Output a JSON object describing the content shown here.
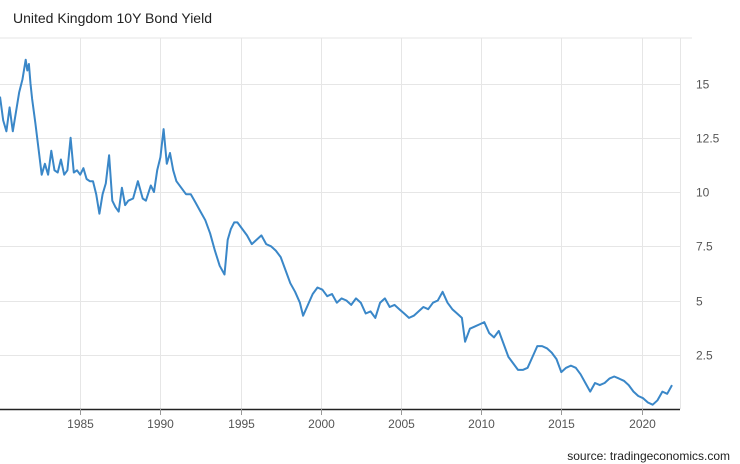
{
  "chart_data": {
    "type": "line",
    "title": "United Kingdom 10Y Bond Yield",
    "source": "source: tradingeconomics.com",
    "xlabel": "",
    "ylabel": "",
    "xlim": [
      1980,
      2022.4
    ],
    "ylim": [
      0,
      17.1
    ],
    "x_ticks": [
      1985,
      1990,
      1995,
      2000,
      2005,
      2010,
      2015,
      2020
    ],
    "y_ticks": [
      2.5,
      5,
      7.5,
      10,
      12.5,
      15
    ],
    "y_tick_labels": [
      "2.5",
      "5",
      "7.5",
      "10",
      "12.5",
      "15"
    ],
    "grid": true,
    "line_color": "#3a87c8",
    "series": [
      {
        "name": "United Kingdom 10Y Bond Yield",
        "x": [
          1980.0,
          1980.2,
          1980.4,
          1980.6,
          1980.8,
          1981.0,
          1981.2,
          1981.4,
          1981.6,
          1981.7,
          1981.8,
          1981.9,
          1982.0,
          1982.2,
          1982.4,
          1982.6,
          1982.8,
          1983.0,
          1983.2,
          1983.4,
          1983.6,
          1983.8,
          1984.0,
          1984.2,
          1984.4,
          1984.6,
          1984.8,
          1985.0,
          1985.2,
          1985.4,
          1985.6,
          1985.8,
          1986.0,
          1986.2,
          1986.4,
          1986.6,
          1986.8,
          1987.0,
          1987.2,
          1987.4,
          1987.6,
          1987.8,
          1988.0,
          1988.3,
          1988.6,
          1988.9,
          1989.1,
          1989.4,
          1989.6,
          1989.8,
          1990.0,
          1990.2,
          1990.4,
          1990.6,
          1990.8,
          1991.0,
          1991.3,
          1991.6,
          1991.9,
          1992.2,
          1992.5,
          1992.8,
          1993.1,
          1993.4,
          1993.7,
          1994.0,
          1994.2,
          1994.4,
          1994.6,
          1994.8,
          1995.1,
          1995.4,
          1995.7,
          1996.0,
          1996.3,
          1996.6,
          1996.9,
          1997.2,
          1997.5,
          1997.8,
          1998.1,
          1998.4,
          1998.7,
          1998.9,
          1999.2,
          1999.5,
          1999.8,
          2000.1,
          2000.4,
          2000.7,
          2001.0,
          2001.3,
          2001.6,
          2001.9,
          2002.2,
          2002.5,
          2002.8,
          2003.1,
          2003.4,
          2003.7,
          2004.0,
          2004.3,
          2004.6,
          2004.9,
          2005.2,
          2005.5,
          2005.8,
          2006.1,
          2006.4,
          2006.7,
          2007.0,
          2007.3,
          2007.6,
          2007.9,
          2008.2,
          2008.5,
          2008.8,
          2009.0,
          2009.3,
          2009.6,
          2009.9,
          2010.2,
          2010.5,
          2010.8,
          2011.1,
          2011.4,
          2011.7,
          2012.0,
          2012.3,
          2012.6,
          2012.9,
          2013.2,
          2013.5,
          2013.8,
          2014.1,
          2014.4,
          2014.7,
          2015.0,
          2015.3,
          2015.6,
          2015.9,
          2016.2,
          2016.5,
          2016.8,
          2017.1,
          2017.4,
          2017.7,
          2018.0,
          2018.3,
          2018.6,
          2018.9,
          2019.2,
          2019.5,
          2019.8,
          2020.1,
          2020.4,
          2020.7,
          2021.0,
          2021.3,
          2021.6,
          2021.9
        ],
        "values": [
          14.4,
          13.3,
          12.8,
          13.9,
          12.8,
          13.7,
          14.6,
          15.2,
          16.1,
          15.6,
          15.9,
          15.0,
          14.3,
          13.2,
          12.0,
          10.8,
          11.3,
          10.8,
          11.9,
          11.0,
          10.9,
          11.5,
          10.8,
          11.0,
          12.5,
          10.9,
          11.0,
          10.8,
          11.1,
          10.6,
          10.5,
          10.5,
          9.9,
          9.0,
          9.9,
          10.4,
          11.7,
          9.6,
          9.3,
          9.1,
          10.2,
          9.4,
          9.6,
          9.7,
          10.5,
          9.7,
          9.6,
          10.3,
          10.0,
          11.0,
          11.6,
          12.9,
          11.3,
          11.8,
          11.0,
          10.5,
          10.2,
          9.9,
          9.9,
          9.5,
          9.1,
          8.7,
          8.1,
          7.3,
          6.6,
          6.2,
          7.8,
          8.3,
          8.6,
          8.6,
          8.3,
          8.0,
          7.6,
          7.8,
          8.0,
          7.6,
          7.5,
          7.3,
          7.0,
          6.4,
          5.8,
          5.4,
          4.9,
          4.3,
          4.8,
          5.3,
          5.6,
          5.5,
          5.2,
          5.3,
          4.9,
          5.1,
          5.0,
          4.8,
          5.1,
          4.9,
          4.4,
          4.5,
          4.2,
          4.9,
          5.1,
          4.7,
          4.8,
          4.6,
          4.4,
          4.2,
          4.3,
          4.5,
          4.7,
          4.6,
          4.9,
          5.0,
          5.4,
          4.9,
          4.6,
          4.4,
          4.2,
          3.1,
          3.7,
          3.8,
          3.9,
          4.0,
          3.5,
          3.3,
          3.6,
          3.0,
          2.4,
          2.1,
          1.8,
          1.8,
          1.9,
          2.4,
          2.9,
          2.9,
          2.8,
          2.6,
          2.3,
          1.7,
          1.9,
          2.0,
          1.9,
          1.6,
          1.2,
          0.8,
          1.2,
          1.1,
          1.2,
          1.4,
          1.5,
          1.4,
          1.3,
          1.1,
          0.8,
          0.6,
          0.5,
          0.3,
          0.2,
          0.4,
          0.8,
          0.7,
          1.1
        ]
      }
    ]
  }
}
